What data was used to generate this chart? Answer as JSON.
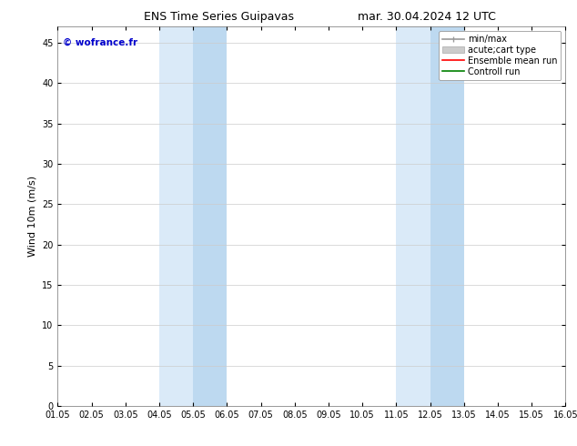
{
  "title_left": "ENS Time Series Guipavas",
  "title_right": "mar. 30.04.2024 12 UTC",
  "ylabel": "Wind 10m (m/s)",
  "watermark": "© wofrance.fr",
  "x_ticks": [
    "01.05",
    "02.05",
    "03.05",
    "04.05",
    "05.05",
    "06.05",
    "07.05",
    "08.05",
    "09.05",
    "10.05",
    "11.05",
    "12.05",
    "13.05",
    "14.05",
    "15.05",
    "16.05"
  ],
  "x_min": 0,
  "x_max": 15,
  "y_min": 0,
  "y_max": 47,
  "y_ticks": [
    0,
    5,
    10,
    15,
    20,
    25,
    30,
    35,
    40,
    45
  ],
  "shaded_regions": [
    {
      "x_start": 3,
      "x_end": 5,
      "color": "#daeaf8"
    },
    {
      "x_start": 10,
      "x_end": 12,
      "color": "#daeaf8"
    }
  ],
  "shaded_sub_regions": [
    {
      "x_start": 4,
      "x_end": 5,
      "color": "#bdd9f0"
    },
    {
      "x_start": 11,
      "x_end": 12,
      "color": "#bdd9f0"
    }
  ],
  "legend_items": [
    {
      "label": "min/max",
      "color": "#999999",
      "lw": 1.2,
      "style": "minmax"
    },
    {
      "label": "acute;cart type",
      "color": "#cccccc",
      "lw": 8,
      "style": "bar"
    },
    {
      "label": "Ensemble mean run",
      "color": "red",
      "lw": 1.2,
      "style": "line"
    },
    {
      "label": "Controll run",
      "color": "green",
      "lw": 1.2,
      "style": "line"
    }
  ],
  "bg_color": "#ffffff",
  "plot_bg_color": "#ffffff",
  "grid_color": "#cccccc",
  "watermark_color": "#0000cc",
  "title_fontsize": 9,
  "ylabel_fontsize": 8,
  "tick_fontsize": 7,
  "legend_fontsize": 7,
  "watermark_fontsize": 7.5
}
